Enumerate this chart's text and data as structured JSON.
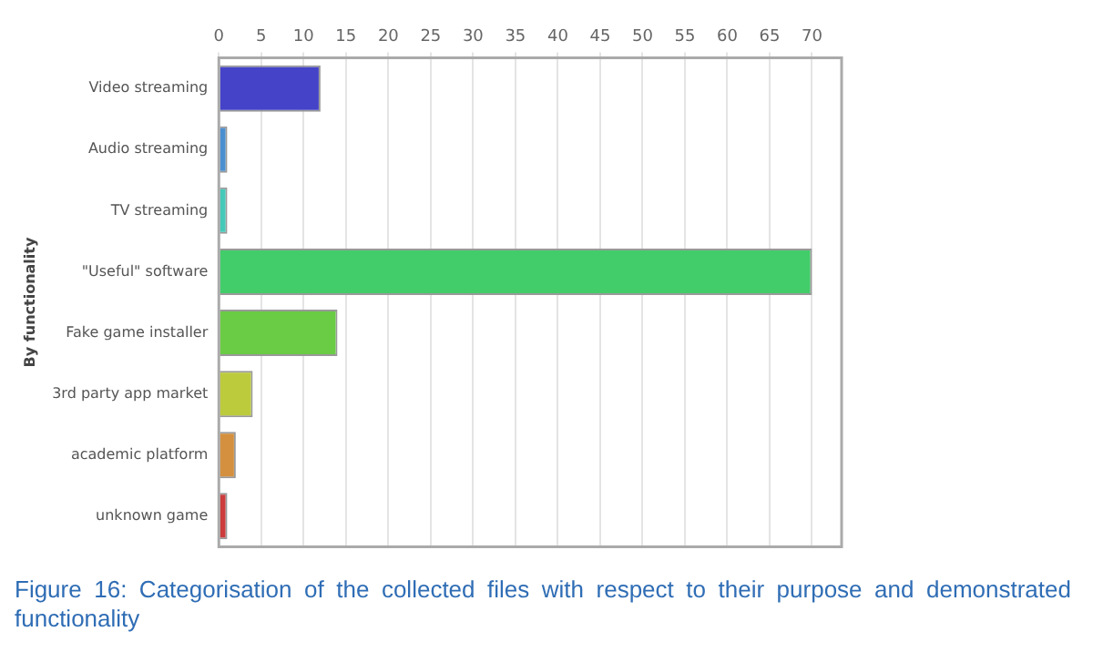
{
  "chart_data": {
    "type": "bar",
    "orientation": "horizontal",
    "ylabel": "By functionality",
    "categories": [
      "Video streaming",
      "Audio streaming",
      "TV streaming",
      "\"Useful\" software",
      "Fake game installer",
      "3rd party app market",
      "academic platform",
      "unknown game"
    ],
    "values": [
      12,
      1,
      1,
      70,
      14,
      4,
      2,
      1
    ],
    "colors": [
      "#4543c8",
      "#4a8fd0",
      "#45c9b8",
      "#42cd6a",
      "#6acb44",
      "#bccb3c",
      "#d4903e",
      "#cc3c3c"
    ],
    "xlim": [
      0,
      73.5
    ],
    "xticks": [
      0,
      5,
      10,
      15,
      20,
      25,
      30,
      35,
      40,
      45,
      50,
      55,
      60,
      65,
      70
    ],
    "grid": "x",
    "annotations": [
      "Figure 16: Categorisation of the collected files with respect to their purpose and demonstrated functionality"
    ]
  }
}
